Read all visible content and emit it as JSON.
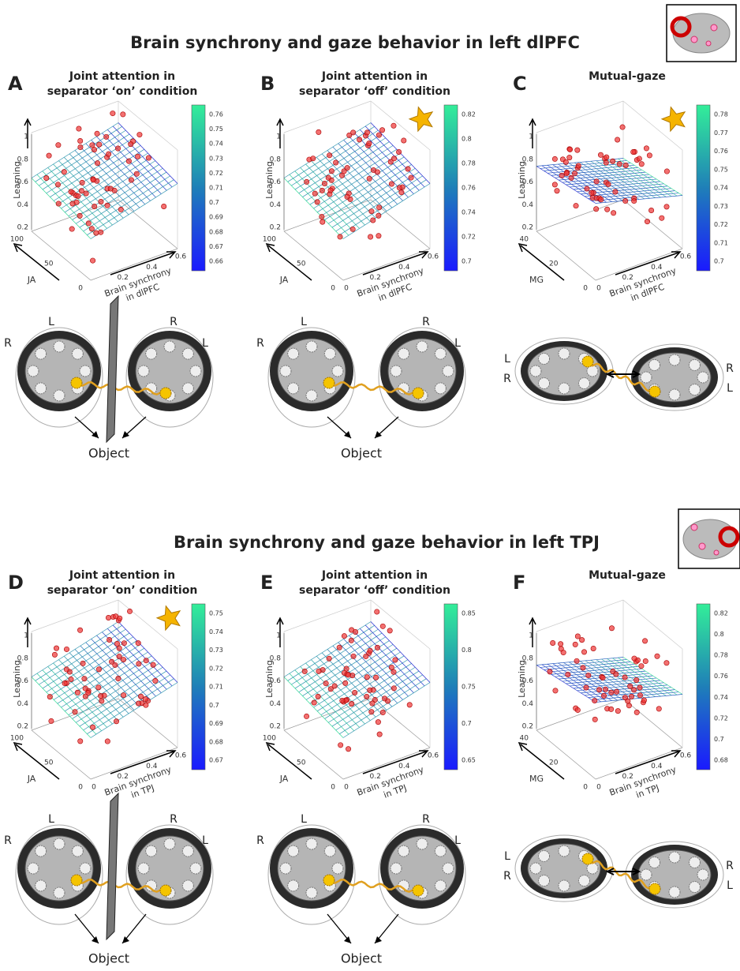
{
  "sections": [
    {
      "title": "Brain synchrony and gaze behavior in left dlPFC",
      "panels": [
        {
          "letter": "A",
          "title": [
            "Joint attention in",
            "separator ‘on’ condition"
          ],
          "z_label": "Learning",
          "z_ticks": [
            "0.2",
            "0.4",
            "0.6",
            "0.8",
            "1"
          ],
          "y_label": "JA",
          "y_ticks": [
            "0",
            "50",
            "100"
          ],
          "x_label": [
            "Brain synchrony",
            "in dlPFC"
          ],
          "x_ticks": [
            "0.2",
            "0.4",
            "0.6"
          ],
          "colorbar_ticks": [
            "0.66",
            "0.67",
            "0.68",
            "0.69",
            "0.7",
            "0.71",
            "0.72",
            "0.73",
            "0.74",
            "0.75",
            "0.76"
          ],
          "star": false,
          "separator": true,
          "head_labels": [
            "L",
            "R",
            "R",
            "L"
          ],
          "object": "Object"
        },
        {
          "letter": "B",
          "title": [
            "Joint attention in",
            "separator ‘off’ condition"
          ],
          "z_label": "Learning",
          "z_ticks": [
            "0.2",
            "0.4",
            "0.6",
            "0.8",
            "1"
          ],
          "y_label": "JA",
          "y_ticks": [
            "0",
            "50",
            "100"
          ],
          "x_label": [
            "Brain synchrony",
            "in dlPFC"
          ],
          "x_ticks": [
            "0",
            "0.2",
            "0.4",
            "0.6"
          ],
          "colorbar_ticks": [
            "0.7",
            "0.72",
            "0.74",
            "0.76",
            "0.78",
            "0.8",
            "0.82"
          ],
          "star": true,
          "separator": false,
          "head_labels": [
            "L",
            "R",
            "R",
            "L"
          ],
          "object": "Object"
        },
        {
          "letter": "C",
          "title": [
            "Mutual-gaze"
          ],
          "z_label": "Learning",
          "z_ticks": [
            "0.2",
            "0.4",
            "0.6",
            "0.8",
            "1"
          ],
          "y_label": "MG",
          "y_ticks": [
            "0",
            "20",
            "40"
          ],
          "x_label": [
            "Brain synchrony",
            "in dlPFC"
          ],
          "x_ticks": [
            "0",
            "0.2",
            "0.4",
            "0.6"
          ],
          "colorbar_ticks": [
            "0.7",
            "0.71",
            "0.72",
            "0.73",
            "0.74",
            "0.75",
            "0.76",
            "0.77",
            "0.78"
          ],
          "star": true,
          "separator": false,
          "head_labels": [
            "L",
            "R",
            "R",
            "L"
          ]
        }
      ]
    },
    {
      "title": "Brain synchrony and gaze behavior in left TPJ",
      "panels": [
        {
          "letter": "D",
          "title": [
            "Joint attention in",
            "separator ‘on’ condition"
          ],
          "z_label": "Learning",
          "z_ticks": [
            "0.2",
            "0.4",
            "0.6",
            "0.8",
            "1"
          ],
          "y_label": "JA",
          "y_ticks": [
            "0",
            "50",
            "100"
          ],
          "x_label": [
            "Brain synchrony",
            "in TPJ"
          ],
          "x_ticks": [
            "0",
            "0.2",
            "0.4",
            "0.6"
          ],
          "colorbar_ticks": [
            "0.67",
            "0.68",
            "0.69",
            "0.7",
            "0.71",
            "0.72",
            "0.73",
            "0.74",
            "0.75"
          ],
          "star": true,
          "separator": true,
          "head_labels": [
            "L",
            "R",
            "R",
            "L"
          ],
          "object": "Object"
        },
        {
          "letter": "E",
          "title": [
            "Joint attention in",
            "separator ‘off’ condition"
          ],
          "z_label": "Learning",
          "z_ticks": [
            "0.2",
            "0.4",
            "0.6",
            "0.8",
            "1"
          ],
          "y_label": "JA",
          "y_ticks": [
            "0",
            "50",
            "100"
          ],
          "x_label": [
            "Brain synchrony",
            "in TPJ"
          ],
          "x_ticks": [
            "0",
            "0.2",
            "0.4",
            "0.6"
          ],
          "colorbar_ticks": [
            "0.65",
            "0.7",
            "0.75",
            "0.8",
            "0.85"
          ],
          "star": false,
          "separator": false,
          "head_labels": [
            "L",
            "R",
            "R",
            "L"
          ],
          "object": "Object"
        },
        {
          "letter": "F",
          "title": [
            "Mutual-gaze"
          ],
          "z_label": "Learning",
          "z_ticks": [
            "0.2",
            "0.4",
            "0.6",
            "0.8",
            "1"
          ],
          "y_label": "MG",
          "y_ticks": [
            "0",
            "20",
            "40"
          ],
          "x_label": [
            "Brain synchrony",
            "in TPJ"
          ],
          "x_ticks": [
            "0",
            "0.2",
            "0.4",
            "0.6"
          ],
          "colorbar_ticks": [
            "0.68",
            "0.7",
            "0.72",
            "0.74",
            "0.76",
            "0.78",
            "0.8",
            "0.82"
          ],
          "star": false,
          "separator": false,
          "head_labels": [
            "L",
            "R",
            "R",
            "L"
          ]
        }
      ]
    }
  ]
}
